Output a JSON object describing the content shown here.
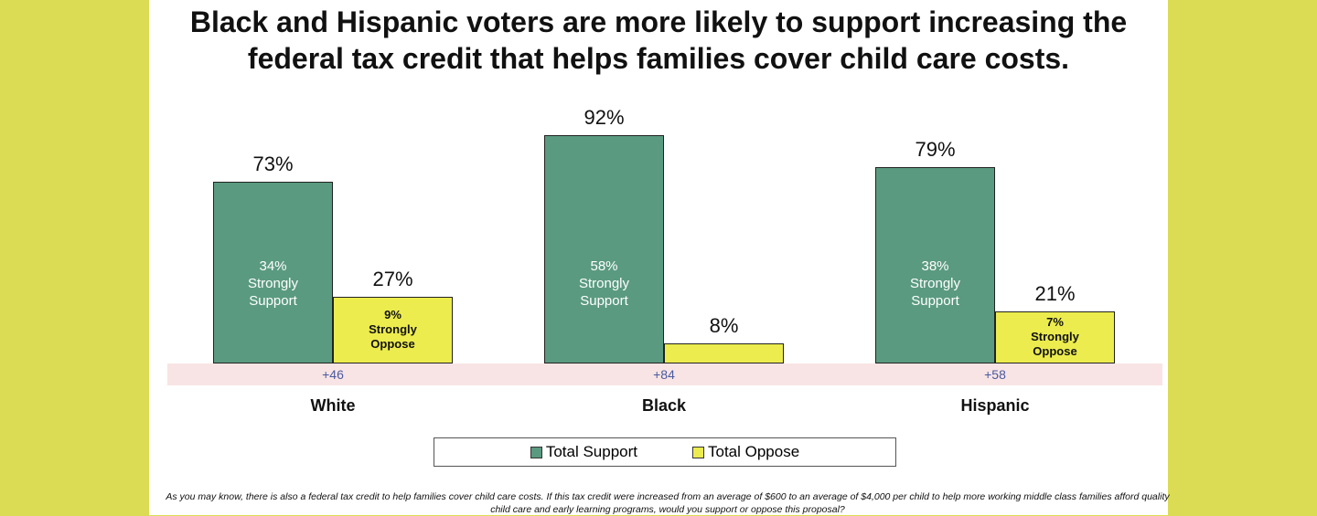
{
  "chart_data": {
    "type": "bar",
    "title": "Black and Hispanic voters are more likely to support increasing the federal tax credit that helps families cover child care costs.",
    "categories": [
      "White",
      "Black",
      "Hispanic"
    ],
    "series": [
      {
        "name": "Total Support",
        "color": "#5a9a80",
        "values": [
          73,
          92,
          79
        ],
        "value_labels": [
          "73%",
          "92%",
          "79%"
        ],
        "inner_values": [
          34,
          58,
          38
        ],
        "inner_value_labels": [
          "34%",
          "58%",
          "38%"
        ],
        "inner_label": "Strongly Support"
      },
      {
        "name": "Total Oppose",
        "color": "#ecec4e",
        "values": [
          27,
          8,
          21
        ],
        "value_labels": [
          "27%",
          "8%",
          "21%"
        ],
        "inner_values": [
          9,
          null,
          7
        ],
        "inner_value_labels": [
          "9%",
          null,
          "7%"
        ],
        "inner_label": "Strongly Oppose"
      }
    ],
    "margins": [
      {
        "value": 46,
        "label": "+46"
      },
      {
        "value": 84,
        "label": "+84"
      },
      {
        "value": 58,
        "label": "+58"
      }
    ],
    "ylim": [
      0,
      100
    ],
    "footnote": "As you may know, there is also a federal tax credit to help families cover child care costs. If this tax credit were increased from an average of $600 to an average of $4,000 per child to help more working middle class families afford quality child care and early learning programs, would you support or oppose this proposal?"
  }
}
